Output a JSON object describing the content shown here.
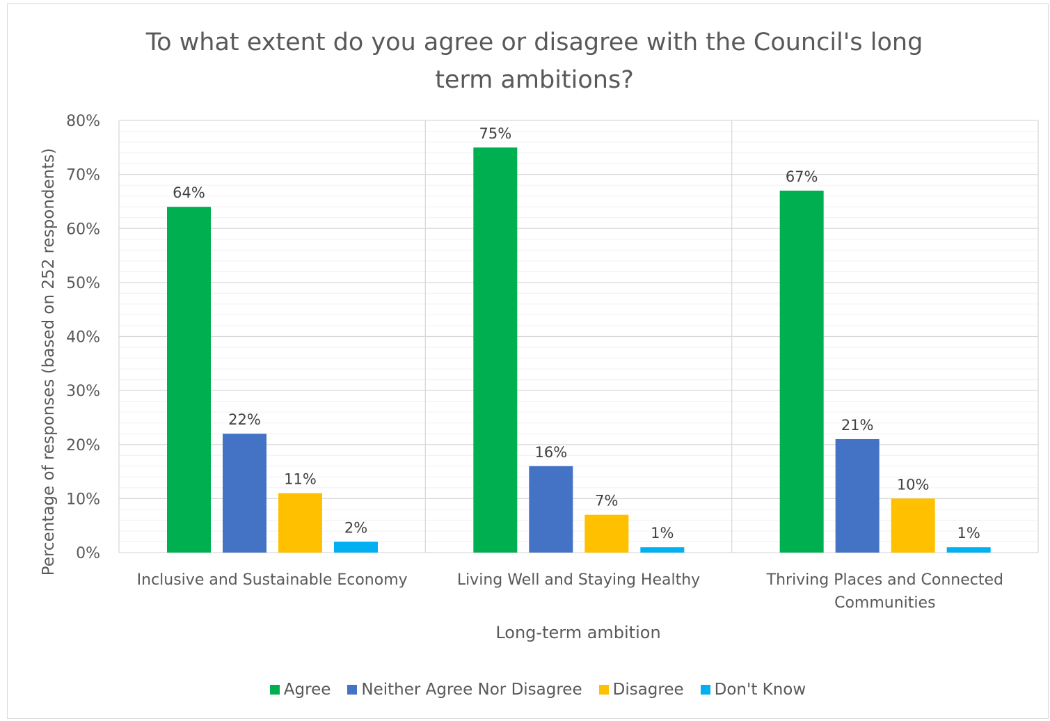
{
  "chart_data": {
    "type": "bar",
    "title": "To what extent do you agree or disagree with the Council's long\nterm ambitions?",
    "xlabel": "Long-term ambition",
    "ylabel": "Percentage of responses (based on 252 respondents)",
    "ylim": [
      0,
      80
    ],
    "y_ticks": [
      "0%",
      "10%",
      "20%",
      "30%",
      "40%",
      "50%",
      "60%",
      "70%",
      "80%"
    ],
    "categories": [
      "Inclusive and Sustainable Economy",
      "Living Well and Staying Healthy",
      "Thriving Places and Connected Communities"
    ],
    "series": [
      {
        "name": "Agree",
        "color": "#00b050",
        "values": [
          64,
          75,
          67
        ],
        "labels": [
          "64%",
          "75%",
          "67%"
        ]
      },
      {
        "name": "Neither Agree Nor Disagree",
        "color": "#4472c4",
        "values": [
          22,
          16,
          21
        ],
        "labels": [
          "22%",
          "16%",
          "21%"
        ]
      },
      {
        "name": "Disagree",
        "color": "#ffc000",
        "values": [
          11,
          7,
          10
        ],
        "labels": [
          "11%",
          "7%",
          "10%"
        ]
      },
      {
        "name": "Don't Know",
        "color": "#00b0f0",
        "values": [
          2,
          1,
          1
        ],
        "labels": [
          "2%",
          "1%",
          "1%"
        ]
      }
    ],
    "grid": true,
    "legend_position": "bottom"
  }
}
